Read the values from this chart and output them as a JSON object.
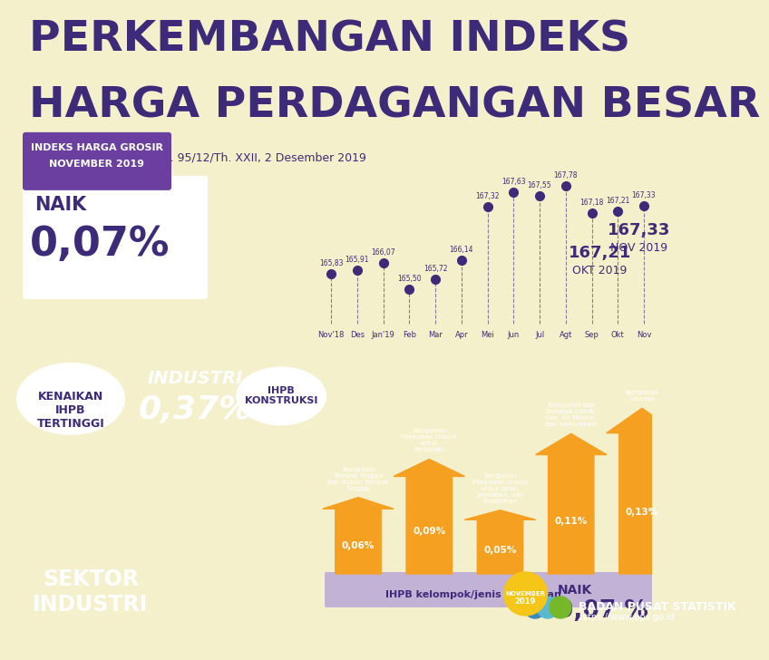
{
  "title_line1": "PERKEMBANGAN INDEKS",
  "title_line2": "HARGA PERDAGANGAN BESAR",
  "subtitle": "Berita Resmi Statistik No. 95/12/Th. XXII, 2 Desember 2019",
  "bg_top": "#f5f0cc",
  "bg_bot": "#6b3fa0",
  "title_color": "#3d2b7a",
  "subtitle_color": "#3d2b7a",
  "box_purple": "#6b3fa0",
  "box_label1": "INDEKS HARGA GROSIR",
  "box_label2": "NOVEMBER 2019",
  "naik_label": "NAIK",
  "naik_value": "0,07%",
  "chart_months": [
    "Nov'18",
    "Des",
    "Jan'19",
    "Feb",
    "Mar",
    "Apr",
    "Mei",
    "Jun",
    "Jul",
    "Agt",
    "Sep",
    "Okt",
    "Nov"
  ],
  "chart_values": [
    165.83,
    165.91,
    166.07,
    165.5,
    165.72,
    166.14,
    167.32,
    167.63,
    167.55,
    167.78,
    167.18,
    167.21,
    167.33
  ],
  "chart_value_labels": [
    "165,83",
    "165,91",
    "166,07",
    "165,50",
    "165,72",
    "166,14",
    "167,32",
    "167,63",
    "167,55",
    "167,78",
    "167,18",
    "167,21",
    "167,33"
  ],
  "oct_text": "167,21\nOKT 2019",
  "nov_text": "167,33\nNOV 2019",
  "dot_color": "#3d2b7a",
  "kenaikan_text": "KENAIKAN\nIHPB\nTERTINGGI",
  "industri_label": "INDUSTRI",
  "industri_value": "0,37%",
  "ihpb_konstr": "IHPB\nKONSTRUKSI",
  "sektor_label": "SEKTOR\nINDUSTRI",
  "bar_labels": [
    "Bangunan\nTempat Tinggal\ndan Bukan Tempat\nTinggal",
    "Bangunan\nPekerjaan Umum\nuntuk\nPertanian",
    "Bangunan\nPekerjaan Umum\nuntuk Jalan,\nJembatan, dan\nPelabuhan",
    "Bangunan dan\nInstalasi Listrik,\nGas, Air Minum,\ndan Komunikasi",
    "Bangunan\nLainnya"
  ],
  "bar_values": [
    0.06,
    0.09,
    0.05,
    0.11,
    0.13
  ],
  "bar_pct_labels": [
    "0,06%",
    "0,09%",
    "0,05%",
    "0,11%",
    "0,13%"
  ],
  "orange": "#f5a020",
  "white": "#ffffff",
  "purple_dark": "#3d2b7a",
  "purple_mid": "#6b3fa0",
  "ihpb_banner": "IHPB kelompok/jenis bangunan",
  "nov_circle_text": "NOVEMBER\n2019",
  "naik_bot_label": "NAIK",
  "naik_bot_value": "0,07 %",
  "bps_name": "BADAN PUSAT STATISTIK",
  "bps_url": "https://www.bps.go.id",
  "bps_blue1": "#3a8ab5",
  "bps_blue2": "#5ab8d0",
  "bps_green": "#76b82a"
}
